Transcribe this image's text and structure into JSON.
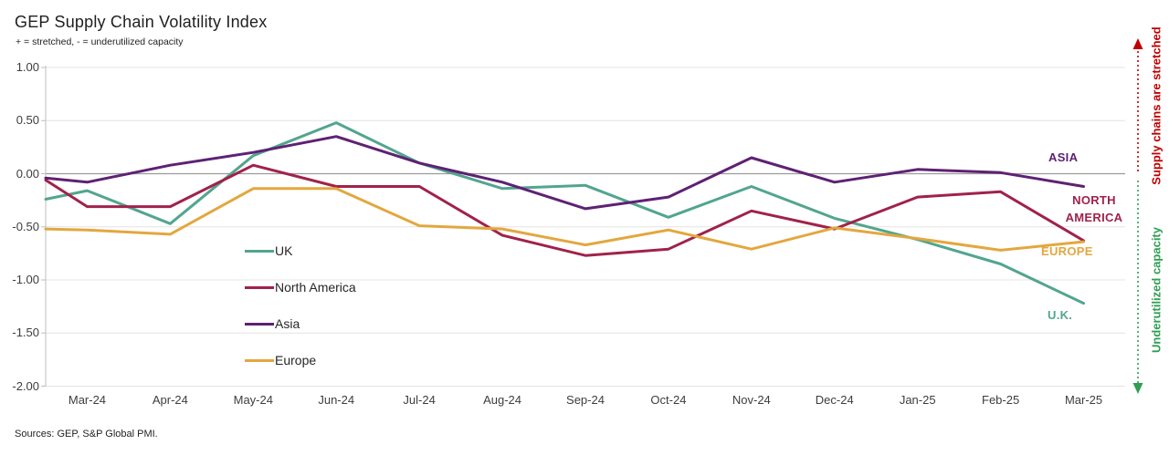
{
  "header": {
    "title": "GEP Supply Chain Volatility Index",
    "subtitle": "+ = stretched, - = underutilized capacity"
  },
  "footer": {
    "source_note": "Sources: GEP, S&P Global PMI."
  },
  "side_annotations": {
    "stretched": {
      "text": "Supply chains are stretched",
      "color": "#C00000"
    },
    "underutilized": {
      "text": "Underutilized capacity",
      "color": "#2F9E52"
    }
  },
  "chart_data": {
    "type": "line",
    "title": "GEP Supply Chain Volatility Index",
    "categories": [
      "Mar-24",
      "Apr-24",
      "May-24",
      "Jun-24",
      "Jul-24",
      "Aug-24",
      "Sep-24",
      "Oct-24",
      "Nov-24",
      "Dec-24",
      "Jan-25",
      "Feb-25",
      "Mar-25"
    ],
    "y_axis": {
      "min": -2.0,
      "max": 1.0,
      "tick_values": [
        1.0,
        0.5,
        0.0,
        -0.5,
        -1.0,
        -1.5,
        -2.0
      ],
      "tick_labels": [
        "1.00",
        "0.50",
        "0.00",
        "-0.50",
        "-1.00",
        "-1.50",
        "-2.00"
      ]
    },
    "grid": true,
    "legend_position": "inside bottom-left",
    "series": [
      {
        "name": "UK",
        "end_label": "U.K.",
        "color": "#52A58F",
        "edge_start": -0.24,
        "values": [
          -0.16,
          -0.47,
          0.17,
          0.48,
          0.1,
          -0.14,
          -0.11,
          -0.41,
          -0.12,
          -0.42,
          -0.62,
          -0.85,
          -1.22
        ]
      },
      {
        "name": "North America",
        "end_label": "NORTH AMERICA",
        "color": "#A0224A",
        "edge_start": -0.06,
        "values": [
          -0.31,
          -0.31,
          0.08,
          -0.12,
          -0.12,
          -0.58,
          -0.77,
          -0.71,
          -0.35,
          -0.52,
          -0.22,
          -0.17,
          -0.63
        ]
      },
      {
        "name": "Asia",
        "end_label": "ASIA",
        "color": "#5E2173",
        "edge_start": -0.04,
        "values": [
          -0.08,
          0.08,
          0.2,
          0.35,
          0.1,
          -0.08,
          -0.33,
          -0.22,
          0.15,
          -0.08,
          0.04,
          0.01,
          -0.12
        ]
      },
      {
        "name": "Europe",
        "end_label": "EUROPE",
        "color": "#E3A73F",
        "edge_start": -0.52,
        "values": [
          -0.53,
          -0.57,
          -0.14,
          -0.14,
          -0.49,
          -0.52,
          -0.67,
          -0.53,
          -0.71,
          -0.51,
          -0.61,
          -0.72,
          -0.64
        ]
      }
    ]
  }
}
